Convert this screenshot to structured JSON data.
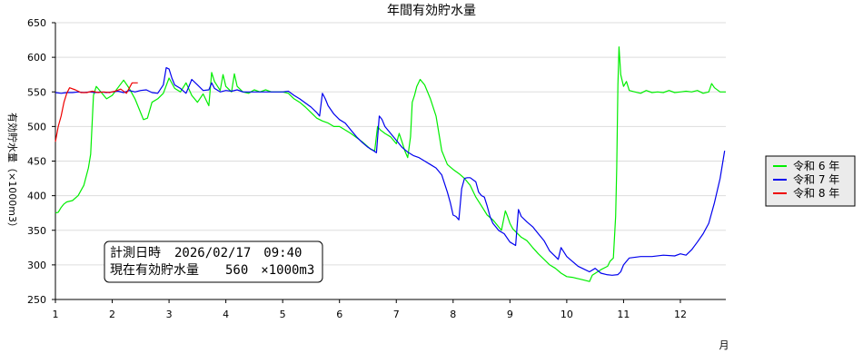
{
  "chart_data": {
    "type": "line",
    "title": "年間有効貯水量",
    "xlabel": "月",
    "ylabel": "有効貯水量（×1000m3）",
    "xlim": [
      1,
      12.8
    ],
    "ylim": [
      250,
      650
    ],
    "x_ticks": [
      "1",
      "2",
      "3",
      "4",
      "5",
      "6",
      "7",
      "8",
      "9",
      "10",
      "11",
      "12"
    ],
    "y_ticks": [
      "250",
      "300",
      "350",
      "400",
      "450",
      "500",
      "550",
      "600",
      "650"
    ],
    "grid": true,
    "legend_position": "right",
    "series": [
      {
        "name": "令和 6 年",
        "color": "#00ee00",
        "points": [
          [
            1.0,
            375
          ],
          [
            1.05,
            376
          ],
          [
            1.1,
            383
          ],
          [
            1.15,
            388
          ],
          [
            1.2,
            391
          ],
          [
            1.3,
            393
          ],
          [
            1.4,
            400
          ],
          [
            1.5,
            415
          ],
          [
            1.58,
            440
          ],
          [
            1.62,
            460
          ],
          [
            1.67,
            545
          ],
          [
            1.72,
            558
          ],
          [
            1.8,
            550
          ],
          [
            1.9,
            540
          ],
          [
            2.0,
            545
          ],
          [
            2.1,
            556
          ],
          [
            2.2,
            567
          ],
          [
            2.3,
            555
          ],
          [
            2.4,
            540
          ],
          [
            2.5,
            520
          ],
          [
            2.55,
            510
          ],
          [
            2.62,
            512
          ],
          [
            2.7,
            535
          ],
          [
            2.8,
            540
          ],
          [
            2.9,
            548
          ],
          [
            3.0,
            570
          ],
          [
            3.1,
            555
          ],
          [
            3.2,
            550
          ],
          [
            3.3,
            563
          ],
          [
            3.4,
            545
          ],
          [
            3.5,
            535
          ],
          [
            3.6,
            547
          ],
          [
            3.7,
            530
          ],
          [
            3.75,
            578
          ],
          [
            3.8,
            565
          ],
          [
            3.9,
            552
          ],
          [
            3.95,
            575
          ],
          [
            4.0,
            558
          ],
          [
            4.1,
            550
          ],
          [
            4.15,
            576
          ],
          [
            4.2,
            558
          ],
          [
            4.3,
            550
          ],
          [
            4.4,
            548
          ],
          [
            4.5,
            553
          ],
          [
            4.6,
            550
          ],
          [
            4.7,
            553
          ],
          [
            4.8,
            550
          ],
          [
            5.0,
            550
          ],
          [
            5.1,
            548
          ],
          [
            5.2,
            540
          ],
          [
            5.3,
            535
          ],
          [
            5.4,
            528
          ],
          [
            5.5,
            520
          ],
          [
            5.6,
            512
          ],
          [
            5.7,
            508
          ],
          [
            5.8,
            505
          ],
          [
            5.9,
            500
          ],
          [
            6.0,
            500
          ],
          [
            6.2,
            490
          ],
          [
            6.4,
            478
          ],
          [
            6.55,
            467
          ],
          [
            6.62,
            465
          ],
          [
            6.67,
            500
          ],
          [
            6.72,
            495
          ],
          [
            6.8,
            490
          ],
          [
            6.9,
            485
          ],
          [
            7.0,
            475
          ],
          [
            7.05,
            490
          ],
          [
            7.1,
            478
          ],
          [
            7.15,
            465
          ],
          [
            7.2,
            455
          ],
          [
            7.25,
            485
          ],
          [
            7.28,
            535
          ],
          [
            7.32,
            545
          ],
          [
            7.36,
            558
          ],
          [
            7.42,
            568
          ],
          [
            7.5,
            560
          ],
          [
            7.6,
            540
          ],
          [
            7.7,
            515
          ],
          [
            7.8,
            465
          ],
          [
            7.9,
            445
          ],
          [
            8.0,
            438
          ],
          [
            8.1,
            432
          ],
          [
            8.2,
            425
          ],
          [
            8.3,
            415
          ],
          [
            8.4,
            398
          ],
          [
            8.5,
            385
          ],
          [
            8.6,
            372
          ],
          [
            8.7,
            365
          ],
          [
            8.8,
            355
          ],
          [
            8.85,
            350
          ],
          [
            8.92,
            378
          ],
          [
            8.95,
            372
          ],
          [
            9.0,
            360
          ],
          [
            9.05,
            352
          ],
          [
            9.1,
            348
          ],
          [
            9.2,
            340
          ],
          [
            9.3,
            335
          ],
          [
            9.4,
            325
          ],
          [
            9.5,
            316
          ],
          [
            9.6,
            308
          ],
          [
            9.7,
            300
          ],
          [
            9.8,
            295
          ],
          [
            9.9,
            288
          ],
          [
            10.0,
            283
          ],
          [
            10.1,
            282
          ],
          [
            10.2,
            280
          ],
          [
            10.3,
            278
          ],
          [
            10.4,
            276
          ],
          [
            10.45,
            285
          ],
          [
            10.6,
            293
          ],
          [
            10.72,
            298
          ],
          [
            10.76,
            305
          ],
          [
            10.82,
            310
          ],
          [
            10.86,
            370
          ],
          [
            10.88,
            440
          ],
          [
            10.9,
            560
          ],
          [
            10.92,
            615
          ],
          [
            10.95,
            575
          ],
          [
            11.0,
            558
          ],
          [
            11.05,
            565
          ],
          [
            11.1,
            552
          ],
          [
            11.2,
            550
          ],
          [
            11.3,
            548
          ],
          [
            11.4,
            552
          ],
          [
            11.5,
            549
          ],
          [
            11.6,
            550
          ],
          [
            11.7,
            549
          ],
          [
            11.8,
            552
          ],
          [
            11.9,
            549
          ],
          [
            12.0,
            550
          ],
          [
            12.1,
            551
          ],
          [
            12.2,
            550
          ],
          [
            12.3,
            552
          ],
          [
            12.4,
            548
          ],
          [
            12.5,
            550
          ],
          [
            12.55,
            562
          ],
          [
            12.6,
            556
          ],
          [
            12.7,
            550
          ],
          [
            12.8,
            550
          ]
        ]
      },
      {
        "name": "令和 7 年",
        "color": "#0000ee",
        "points": [
          [
            1.0,
            549
          ],
          [
            1.1,
            548
          ],
          [
            1.2,
            549
          ],
          [
            1.3,
            549
          ],
          [
            1.4,
            550
          ],
          [
            1.5,
            549
          ],
          [
            1.6,
            550
          ],
          [
            1.7,
            549
          ],
          [
            1.8,
            550
          ],
          [
            1.9,
            549
          ],
          [
            2.0,
            550
          ],
          [
            2.1,
            551
          ],
          [
            2.2,
            549
          ],
          [
            2.3,
            552
          ],
          [
            2.4,
            550
          ],
          [
            2.5,
            552
          ],
          [
            2.6,
            553
          ],
          [
            2.7,
            549
          ],
          [
            2.8,
            548
          ],
          [
            2.9,
            560
          ],
          [
            2.95,
            585
          ],
          [
            3.0,
            583
          ],
          [
            3.05,
            570
          ],
          [
            3.1,
            560
          ],
          [
            3.2,
            555
          ],
          [
            3.3,
            548
          ],
          [
            3.35,
            558
          ],
          [
            3.4,
            568
          ],
          [
            3.5,
            560
          ],
          [
            3.6,
            552
          ],
          [
            3.7,
            553
          ],
          [
            3.75,
            563
          ],
          [
            3.8,
            555
          ],
          [
            3.9,
            550
          ],
          [
            4.0,
            552
          ],
          [
            4.1,
            551
          ],
          [
            4.2,
            553
          ],
          [
            4.3,
            550
          ],
          [
            4.5,
            550
          ],
          [
            4.7,
            550
          ],
          [
            4.9,
            550
          ],
          [
            5.0,
            550
          ],
          [
            5.1,
            551
          ],
          [
            5.2,
            545
          ],
          [
            5.3,
            540
          ],
          [
            5.4,
            534
          ],
          [
            5.5,
            528
          ],
          [
            5.6,
            520
          ],
          [
            5.65,
            515
          ],
          [
            5.7,
            548
          ],
          [
            5.75,
            540
          ],
          [
            5.8,
            530
          ],
          [
            5.9,
            518
          ],
          [
            6.0,
            510
          ],
          [
            6.1,
            505
          ],
          [
            6.2,
            495
          ],
          [
            6.3,
            485
          ],
          [
            6.4,
            477
          ],
          [
            6.5,
            470
          ],
          [
            6.6,
            465
          ],
          [
            6.65,
            462
          ],
          [
            6.7,
            515
          ],
          [
            6.75,
            510
          ],
          [
            6.8,
            500
          ],
          [
            6.9,
            490
          ],
          [
            7.0,
            480
          ],
          [
            7.1,
            470
          ],
          [
            7.2,
            463
          ],
          [
            7.3,
            458
          ],
          [
            7.4,
            455
          ],
          [
            7.5,
            450
          ],
          [
            7.6,
            445
          ],
          [
            7.7,
            440
          ],
          [
            7.8,
            430
          ],
          [
            7.9,
            405
          ],
          [
            7.95,
            390
          ],
          [
            8.0,
            372
          ],
          [
            8.05,
            370
          ],
          [
            8.1,
            365
          ],
          [
            8.15,
            410
          ],
          [
            8.2,
            425
          ],
          [
            8.25,
            426
          ],
          [
            8.3,
            426
          ],
          [
            8.4,
            420
          ],
          [
            8.45,
            405
          ],
          [
            8.5,
            400
          ],
          [
            8.55,
            398
          ],
          [
            8.6,
            385
          ],
          [
            8.65,
            370
          ],
          [
            8.7,
            360
          ],
          [
            8.75,
            355
          ],
          [
            8.8,
            350
          ],
          [
            8.9,
            345
          ],
          [
            9.0,
            333
          ],
          [
            9.1,
            328
          ],
          [
            9.15,
            380
          ],
          [
            9.2,
            370
          ],
          [
            9.3,
            362
          ],
          [
            9.4,
            355
          ],
          [
            9.5,
            345
          ],
          [
            9.6,
            335
          ],
          [
            9.7,
            320
          ],
          [
            9.8,
            312
          ],
          [
            9.85,
            308
          ],
          [
            9.9,
            325
          ],
          [
            10.0,
            312
          ],
          [
            10.1,
            305
          ],
          [
            10.2,
            298
          ],
          [
            10.3,
            294
          ],
          [
            10.4,
            290
          ],
          [
            10.5,
            295
          ],
          [
            10.6,
            288
          ],
          [
            10.7,
            286
          ],
          [
            10.8,
            285
          ],
          [
            10.9,
            286
          ],
          [
            10.95,
            290
          ],
          [
            11.0,
            300
          ],
          [
            11.1,
            310
          ],
          [
            11.3,
            312
          ],
          [
            11.5,
            312
          ],
          [
            11.7,
            314
          ],
          [
            11.9,
            313
          ],
          [
            12.0,
            316
          ],
          [
            12.1,
            314
          ],
          [
            12.2,
            322
          ],
          [
            12.3,
            333
          ],
          [
            12.4,
            345
          ],
          [
            12.5,
            360
          ],
          [
            12.6,
            390
          ],
          [
            12.7,
            425
          ],
          [
            12.78,
            465
          ]
        ]
      },
      {
        "name": "令和 8 年",
        "color": "#ee0000",
        "points": [
          [
            1.0,
            478
          ],
          [
            1.05,
            500
          ],
          [
            1.1,
            515
          ],
          [
            1.15,
            535
          ],
          [
            1.2,
            548
          ],
          [
            1.25,
            556
          ],
          [
            1.35,
            553
          ],
          [
            1.45,
            549
          ],
          [
            1.55,
            549
          ],
          [
            1.65,
            551
          ],
          [
            1.75,
            549
          ],
          [
            1.85,
            550
          ],
          [
            1.95,
            549
          ],
          [
            2.05,
            551
          ],
          [
            2.15,
            554
          ],
          [
            2.25,
            548
          ],
          [
            2.35,
            563
          ],
          [
            2.45,
            563
          ]
        ]
      }
    ]
  },
  "annotation": {
    "line1_label": "計測日時",
    "line1_value": "2026/02/17　09:40",
    "line2_label": "現在有効貯水量",
    "line2_value": "560　×1000m3"
  }
}
